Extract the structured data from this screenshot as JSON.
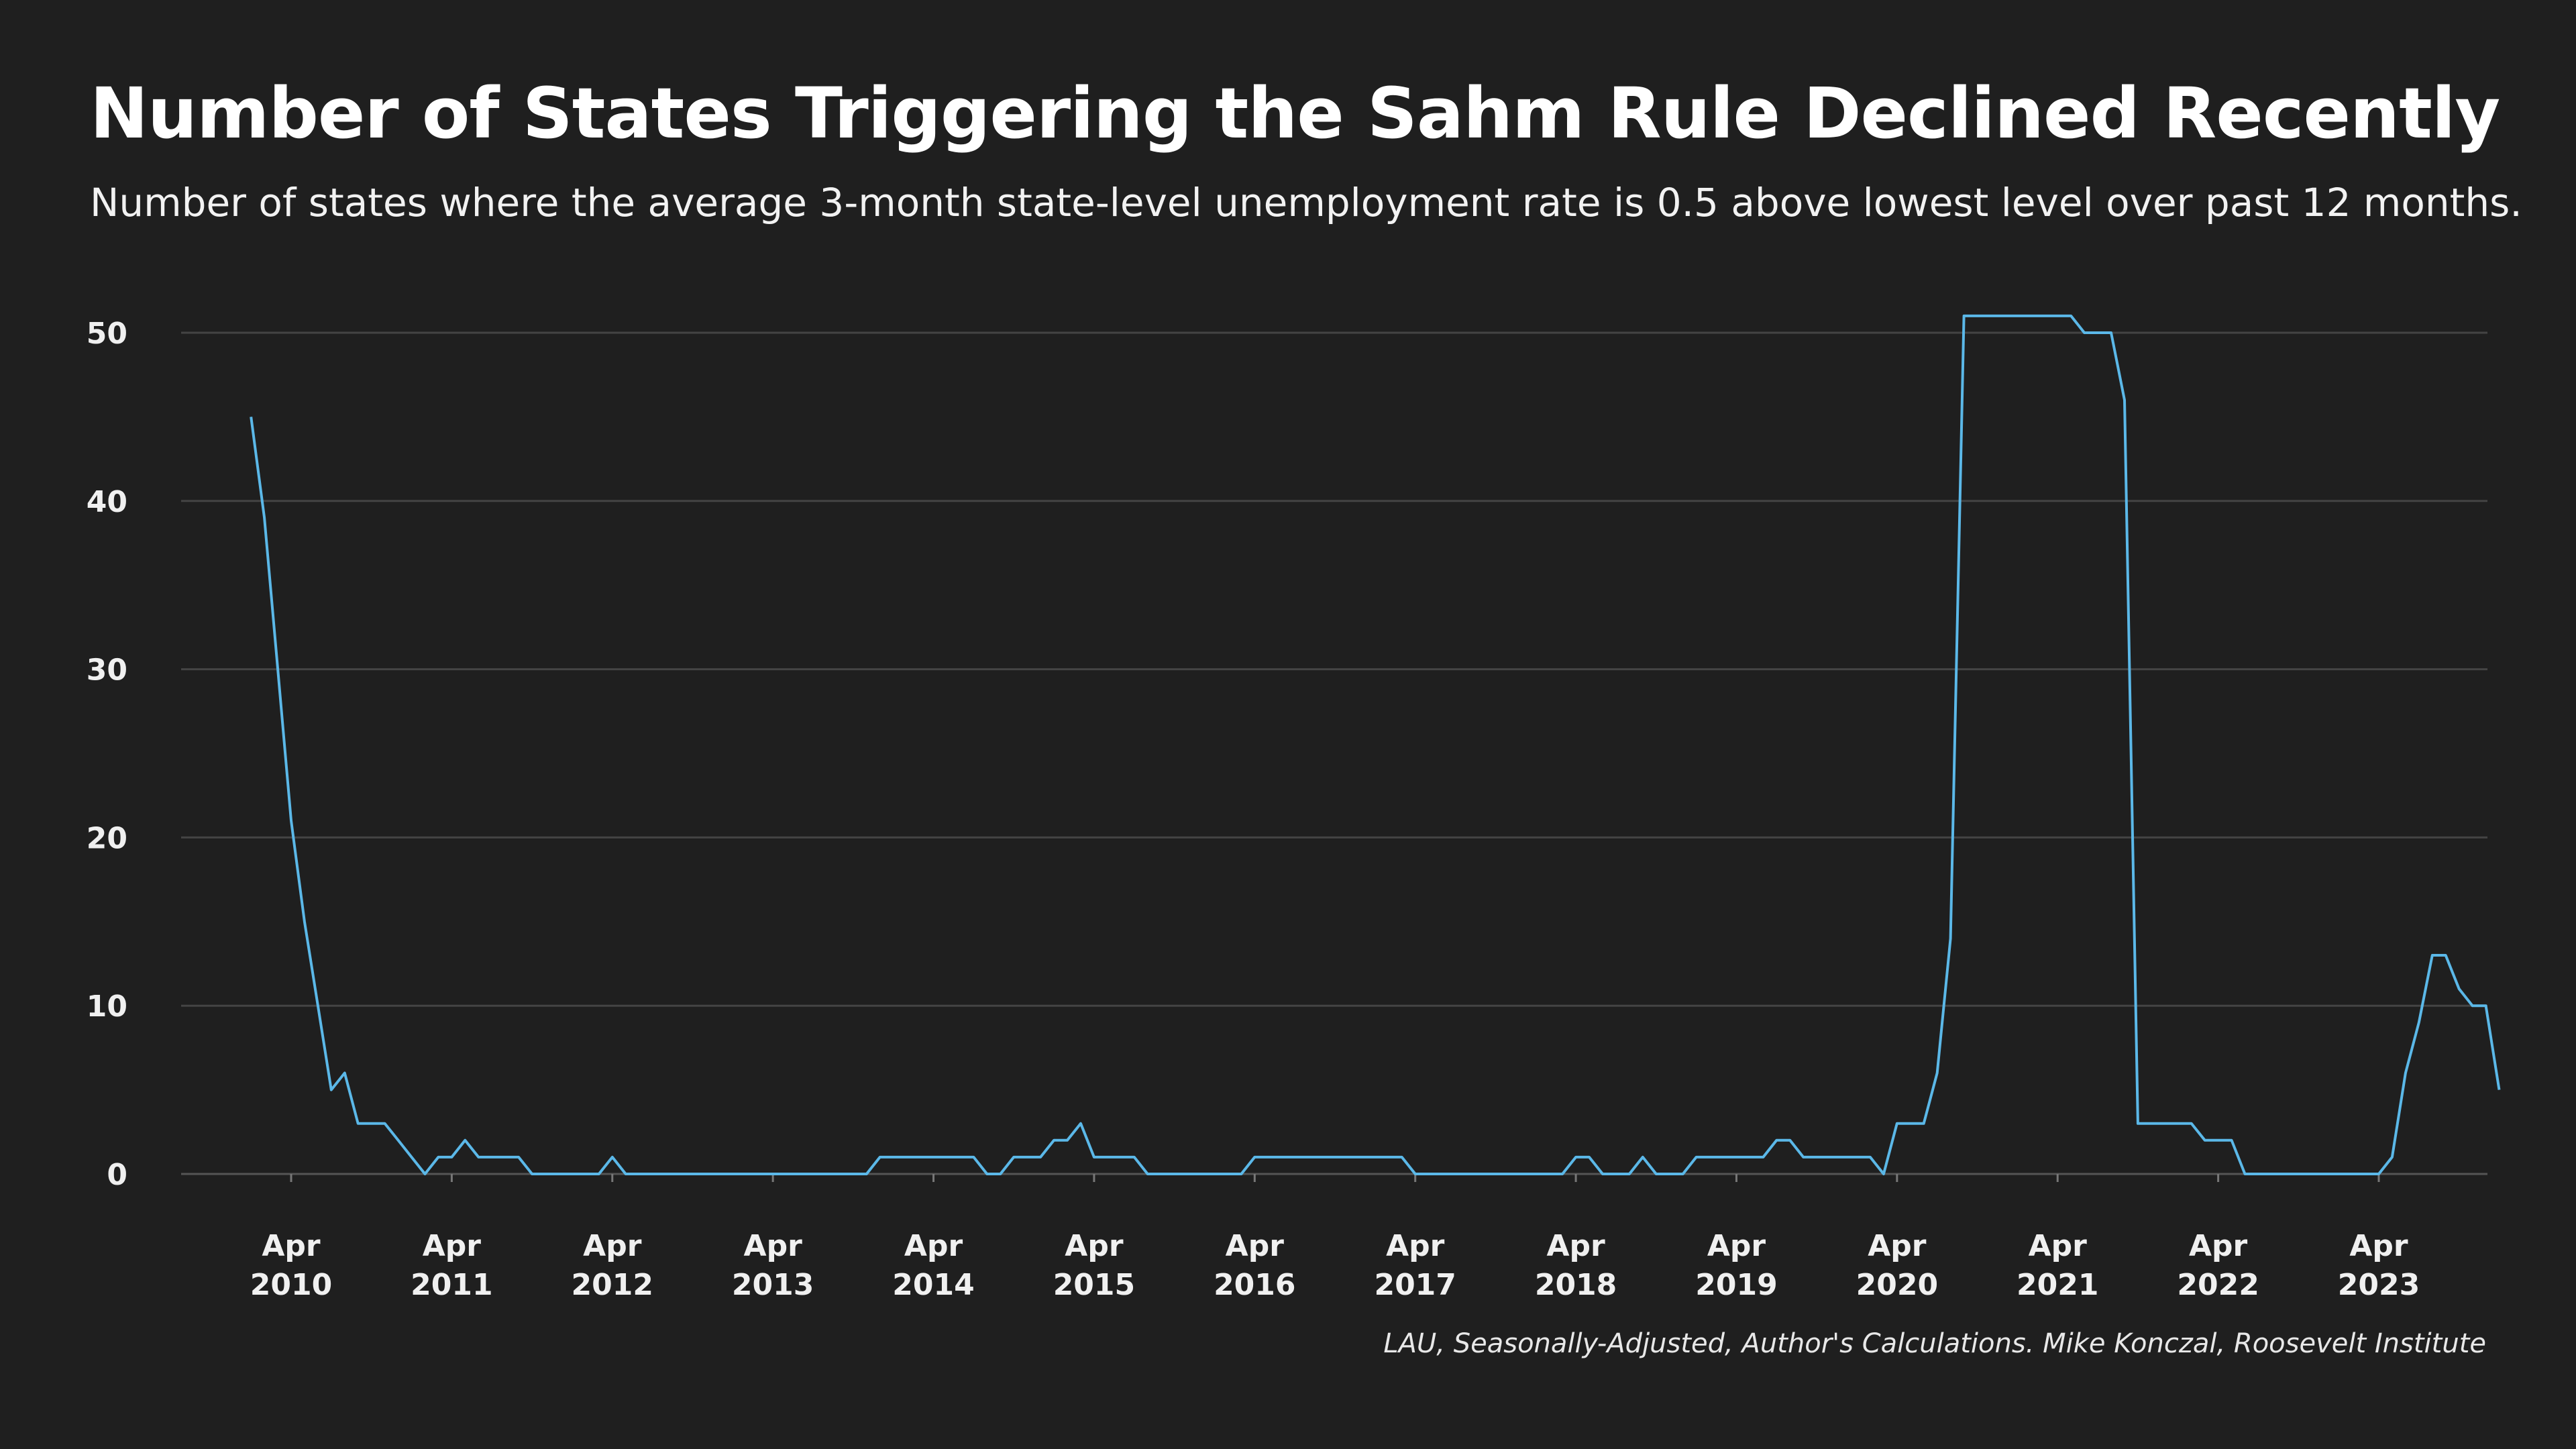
{
  "header": {
    "title": "Number of States Triggering the Sahm Rule Declined Recently",
    "subtitle": "Number of states where the average 3-month state-level unemployment rate is 0.5 above lowest level over past 12 months."
  },
  "footer": {
    "source": "LAU, Seasonally-Adjusted, Author's Calculations. Mike Konczal, Roosevelt Institute"
  },
  "colors": {
    "background": "#1f1f1f",
    "line": "#5bb8e8",
    "text": "#ffffff"
  },
  "chart_data": {
    "type": "line",
    "title": "Number of States Triggering the Sahm Rule Declined Recently",
    "subtitle": "Number of states where the average 3-month state-level unemployment rate is 0.5 above lowest level over past 12 months.",
    "xlabel": "",
    "ylabel": "",
    "ylim": [
      0,
      51
    ],
    "grid": true,
    "yticks": [
      0,
      10,
      20,
      30,
      40,
      50
    ],
    "xticks": [
      {
        "date": "2010-04",
        "month": "Apr",
        "year": "2010"
      },
      {
        "date": "2011-04",
        "month": "Apr",
        "year": "2011"
      },
      {
        "date": "2012-04",
        "month": "Apr",
        "year": "2012"
      },
      {
        "date": "2013-04",
        "month": "Apr",
        "year": "2013"
      },
      {
        "date": "2014-04",
        "month": "Apr",
        "year": "2014"
      },
      {
        "date": "2015-04",
        "month": "Apr",
        "year": "2015"
      },
      {
        "date": "2016-04",
        "month": "Apr",
        "year": "2016"
      },
      {
        "date": "2017-04",
        "month": "Apr",
        "year": "2017"
      },
      {
        "date": "2018-04",
        "month": "Apr",
        "year": "2018"
      },
      {
        "date": "2019-04",
        "month": "Apr",
        "year": "2019"
      },
      {
        "date": "2020-04",
        "month": "Apr",
        "year": "2020"
      },
      {
        "date": "2021-04",
        "month": "Apr",
        "year": "2021"
      },
      {
        "date": "2022-04",
        "month": "Apr",
        "year": "2022"
      },
      {
        "date": "2023-04",
        "month": "Apr",
        "year": "2023"
      }
    ],
    "xlim": [
      "2009-09",
      "2023-10"
    ],
    "series": [
      {
        "start": "2010-01",
        "values": [
          45,
          39,
          30,
          21,
          15,
          10,
          5,
          6,
          3,
          3,
          3,
          2,
          1,
          0,
          1,
          1,
          2,
          1,
          1,
          1,
          1,
          0,
          0,
          0,
          0,
          0,
          0,
          1,
          0,
          0,
          0,
          0,
          0,
          0,
          0,
          0,
          0,
          0,
          0,
          0,
          0,
          0,
          0,
          0,
          0,
          0,
          0,
          1,
          1,
          1,
          1,
          1,
          1,
          1,
          1,
          0,
          0,
          1,
          1,
          1,
          2,
          2,
          3,
          1,
          1,
          1,
          1,
          0,
          0,
          0,
          0,
          0,
          0,
          0,
          0,
          1,
          1,
          1,
          1,
          1,
          1,
          1,
          1,
          1,
          1,
          1,
          1,
          0,
          0,
          0,
          0,
          0,
          0,
          0,
          0,
          0,
          0,
          0,
          0,
          1,
          1,
          0,
          0,
          0,
          1,
          0,
          0,
          0,
          1,
          1,
          1,
          1,
          1,
          1,
          2,
          2,
          1,
          1,
          1,
          1,
          1,
          1,
          0,
          3,
          3,
          3,
          6,
          14,
          51,
          51,
          51,
          51,
          51,
          51,
          51,
          51,
          51,
          50,
          50,
          50,
          46,
          3,
          3,
          3,
          3,
          3,
          2,
          2,
          2,
          0,
          0,
          0,
          0,
          0,
          0,
          0,
          0,
          0,
          0,
          0,
          1,
          6,
          9,
          13,
          13,
          11,
          10,
          10,
          5
        ]
      }
    ]
  }
}
